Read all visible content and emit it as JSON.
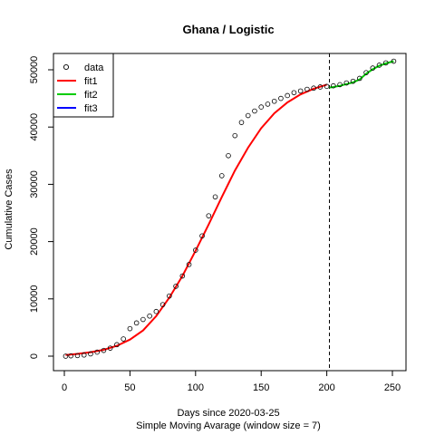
{
  "chart_data": {
    "type": "scatter",
    "title": "Ghana / Logistic",
    "xlabel": "Days since 2020-03-25",
    "subtitle": "Simple Moving Avarage (window size = 7)",
    "ylabel": "Cumulative Cases",
    "xlim": [
      0,
      250
    ],
    "ylim": [
      0,
      50000
    ],
    "xticks": [
      0,
      50,
      100,
      150,
      200,
      250
    ],
    "yticks": [
      0,
      10000,
      20000,
      30000,
      40000,
      50000
    ],
    "vline_x": 202,
    "legend": {
      "position": "top-left",
      "entries": [
        {
          "label": "data",
          "kind": "point",
          "color": "#000000"
        },
        {
          "label": "fit1",
          "kind": "line",
          "color": "#ff0000"
        },
        {
          "label": "fit2",
          "kind": "line",
          "color": "#00cc00"
        },
        {
          "label": "fit3",
          "kind": "line",
          "color": "#0000ff"
        }
      ]
    },
    "data_points": {
      "x": [
        1,
        5,
        10,
        15,
        20,
        25,
        30,
        35,
        40,
        45,
        50,
        55,
        60,
        65,
        70,
        75,
        80,
        85,
        90,
        95,
        100,
        105,
        110,
        115,
        120,
        125,
        130,
        135,
        140,
        145,
        150,
        155,
        160,
        165,
        170,
        175,
        180,
        185,
        190,
        195,
        200,
        205,
        210,
        215,
        220,
        225,
        230,
        235,
        240,
        245,
        251
      ],
      "y": [
        0,
        50,
        100,
        200,
        400,
        700,
        1000,
        1400,
        2000,
        3000,
        4800,
        5800,
        6400,
        7000,
        7800,
        9000,
        10500,
        12200,
        14000,
        16000,
        18500,
        21000,
        24500,
        27800,
        31500,
        35000,
        38500,
        40800,
        42000,
        42800,
        43500,
        44000,
        44500,
        45000,
        45500,
        46000,
        46300,
        46600,
        46800,
        47000,
        47100,
        47200,
        47400,
        47700,
        48000,
        48500,
        49500,
        50300,
        50800,
        51200,
        51500
      ]
    },
    "series": [
      {
        "name": "fit1",
        "color": "#ff0000",
        "x": [
          1,
          10,
          20,
          30,
          40,
          50,
          60,
          70,
          80,
          90,
          100,
          110,
          120,
          130,
          140,
          150,
          160,
          170,
          180,
          190,
          200
        ],
        "y": [
          200,
          400,
          700,
          1100,
          1800,
          2900,
          4500,
          7000,
          10200,
          14000,
          18400,
          23000,
          27800,
          32400,
          36400,
          39800,
          42400,
          44300,
          45700,
          46700,
          47400
        ]
      },
      {
        "name": "fit2",
        "color": "#00cc00",
        "x": [
          202,
          205,
          210,
          215,
          220,
          225,
          230,
          235,
          240,
          245,
          251
        ],
        "y": [
          46900,
          47000,
          47200,
          47500,
          47800,
          48300,
          49300,
          50100,
          50700,
          51100,
          51500
        ]
      }
    ]
  }
}
